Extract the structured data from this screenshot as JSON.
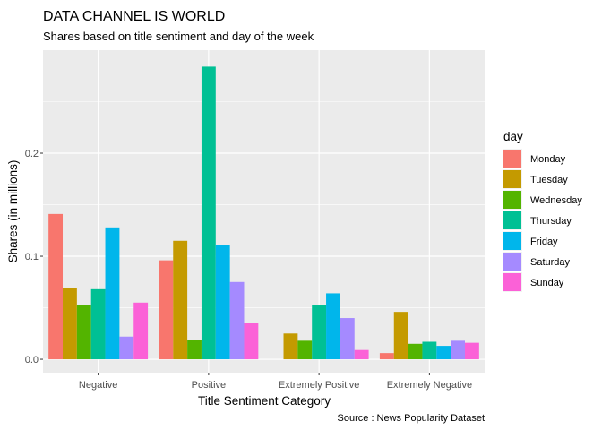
{
  "chart_data": {
    "type": "bar",
    "title": "DATA CHANNEL IS WORLD",
    "subtitle": "Shares based on title sentiment and day of the week",
    "xlabel": "Title Sentiment Category",
    "ylabel": "Shares (in millions)",
    "caption": "Source : News Popularity Dataset",
    "categories": [
      "Negative",
      "Positive",
      "Extremely Positive",
      "Extremely Negative"
    ],
    "ylim": [
      -0.013,
      0.3
    ],
    "yticks": [
      0.0,
      0.1,
      0.2
    ],
    "ytick_labels": [
      "0.0",
      "0.1",
      "0.2"
    ],
    "legend_title": "day",
    "legend_position": "right",
    "grid": true,
    "series": [
      {
        "name": "Monday",
        "color": "#F8766D",
        "values": [
          0.141,
          0.096,
          0.0,
          0.006
        ]
      },
      {
        "name": "Tuesday",
        "color": "#C49A00",
        "values": [
          0.069,
          0.115,
          0.025,
          0.046
        ]
      },
      {
        "name": "Wednesday",
        "color": "#53B400",
        "values": [
          0.053,
          0.019,
          0.018,
          0.015
        ]
      },
      {
        "name": "Thursday",
        "color": "#00C094",
        "values": [
          0.068,
          0.284,
          0.053,
          0.017
        ]
      },
      {
        "name": "Friday",
        "color": "#00B6EB",
        "values": [
          0.128,
          0.111,
          0.064,
          0.013
        ]
      },
      {
        "name": "Saturday",
        "color": "#A58AFF",
        "values": [
          0.022,
          0.075,
          0.04,
          0.018
        ]
      },
      {
        "name": "Sunday",
        "color": "#FB61D7",
        "values": [
          0.055,
          0.035,
          0.009,
          0.016
        ]
      }
    ]
  }
}
